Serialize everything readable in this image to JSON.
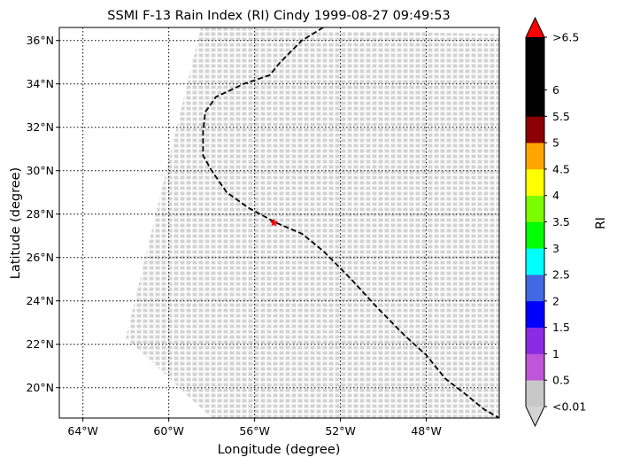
{
  "title": "SSMI F-13 Rain Index (RI) Cindy 1999-08-27 09:49:53",
  "xlabel": "Longitude (degree)",
  "ylabel": "Latitude (degree)",
  "colorbar_label": "RI",
  "x_ticks": [
    {
      "value": -64,
      "label": "64°W"
    },
    {
      "value": -60,
      "label": "60°W"
    },
    {
      "value": -56,
      "label": "56°W"
    },
    {
      "value": -52,
      "label": "52°W"
    },
    {
      "value": -48,
      "label": "48°W"
    }
  ],
  "y_ticks": [
    {
      "value": 20,
      "label": "20°N"
    },
    {
      "value": 22,
      "label": "22°N"
    },
    {
      "value": 24,
      "label": "24°N"
    },
    {
      "value": 26,
      "label": "26°N"
    },
    {
      "value": 28,
      "label": "28°N"
    },
    {
      "value": 30,
      "label": "30°N"
    },
    {
      "value": 32,
      "label": "32°N"
    },
    {
      "value": 34,
      "label": "34°N"
    },
    {
      "value": 36,
      "label": "36°N"
    }
  ],
  "xlim": [
    -65.1,
    -44.6
  ],
  "ylim": [
    18.6,
    36.6
  ],
  "colorbar": {
    "bins": [
      {
        "label": "<0.01",
        "color": "#c8c8c8"
      },
      {
        "label": "0.5",
        "color": "#bf55d8"
      },
      {
        "label": "1",
        "color": "#8a2be2"
      },
      {
        "label": "1.5",
        "color": "#0000ff"
      },
      {
        "label": "2",
        "color": "#4169e1"
      },
      {
        "label": "2.5",
        "color": "#00ffff"
      },
      {
        "label": "3",
        "color": "#00ff00"
      },
      {
        "label": "3.5",
        "color": "#7cfc00"
      },
      {
        "label": "4",
        "color": "#ffff00"
      },
      {
        "label": "4.5",
        "color": "#ffa500"
      },
      {
        "label": "5",
        "color": "#8b0000"
      },
      {
        "label": "5.5",
        "color": "#000000"
      },
      {
        "label": "6",
        "color": "#000000"
      },
      {
        "label": ">6.5",
        "color": "#000000"
      }
    ],
    "over_color": "#ff0000",
    "under_color": "#d3d3d3"
  },
  "chart_data": {
    "type": "scatter",
    "swath": {
      "color": "#d3d3d3",
      "corners": [
        {
          "lon": -58.5,
          "lat": 36.6
        },
        {
          "lon": -44.6,
          "lat": 36.3
        },
        {
          "lon": -44.6,
          "lat": 18.6
        },
        {
          "lon": -58.0,
          "lat": 18.6
        },
        {
          "lon": -62.0,
          "lat": 22.3
        }
      ],
      "value_category": "<0.01"
    },
    "track": {
      "style": "dashed",
      "color": "#000000",
      "points": [
        {
          "lon": -52.8,
          "lat": 36.6
        },
        {
          "lon": -53.8,
          "lat": 36.0
        },
        {
          "lon": -54.8,
          "lat": 35.0
        },
        {
          "lon": -55.3,
          "lat": 34.4
        },
        {
          "lon": -56.5,
          "lat": 34.0
        },
        {
          "lon": -57.8,
          "lat": 33.4
        },
        {
          "lon": -58.3,
          "lat": 32.7
        },
        {
          "lon": -58.4,
          "lat": 31.8
        },
        {
          "lon": -58.4,
          "lat": 30.7
        },
        {
          "lon": -58.0,
          "lat": 30.0
        },
        {
          "lon": -57.3,
          "lat": 29.0
        },
        {
          "lon": -56.3,
          "lat": 28.3
        },
        {
          "lon": -55.0,
          "lat": 27.6
        },
        {
          "lon": -53.8,
          "lat": 27.1
        },
        {
          "lon": -52.8,
          "lat": 26.3
        },
        {
          "lon": -51.5,
          "lat": 25.0
        },
        {
          "lon": -50.2,
          "lat": 23.6
        },
        {
          "lon": -49.0,
          "lat": 22.4
        },
        {
          "lon": -48.0,
          "lat": 21.5
        },
        {
          "lon": -47.1,
          "lat": 20.4
        },
        {
          "lon": -46.3,
          "lat": 19.8
        },
        {
          "lon": -45.3,
          "lat": 19.0
        },
        {
          "lon": -44.6,
          "lat": 18.6
        }
      ]
    },
    "center": {
      "lon": -55.1,
      "lat": 27.6,
      "marker": "star",
      "color": "#ff0000"
    }
  }
}
